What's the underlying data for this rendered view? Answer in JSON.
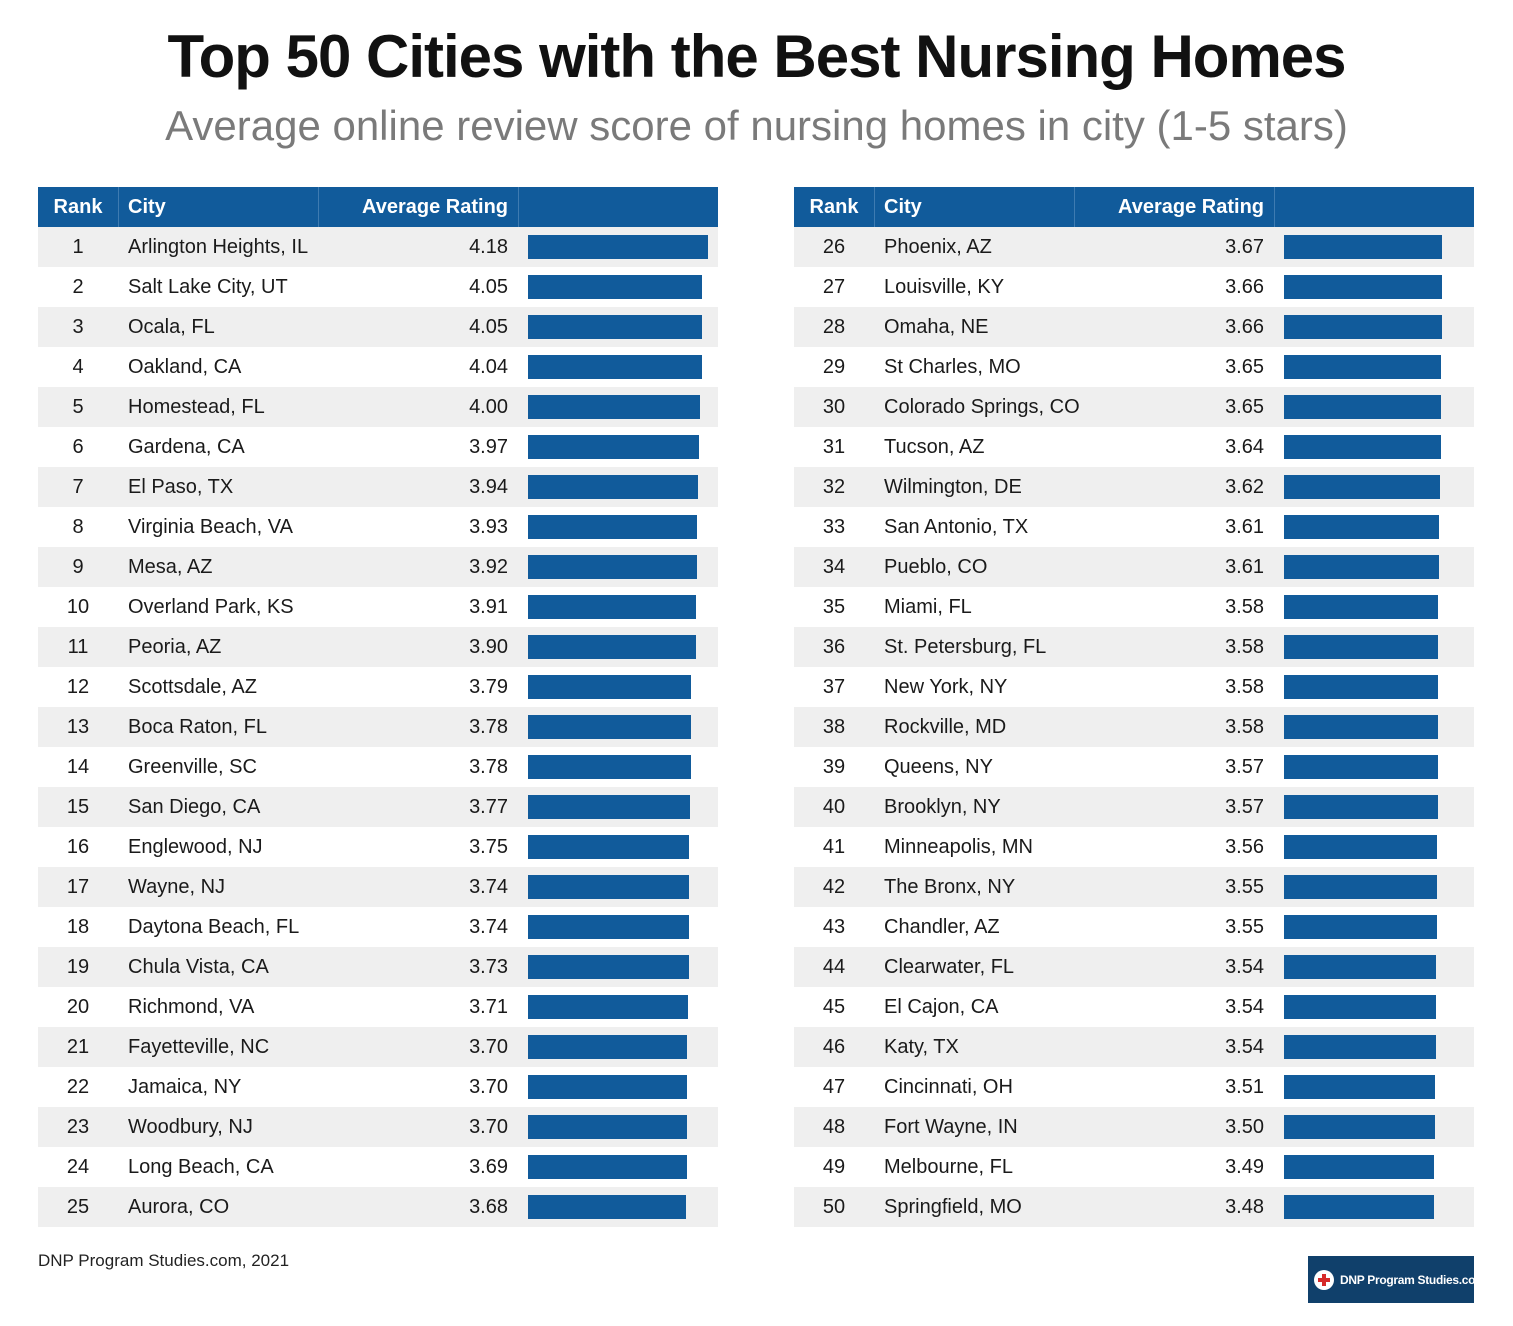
{
  "title": "Top 50 Cities with the Best Nursing Homes",
  "subtitle": "Average online review score of nursing homes in city (1-5 stars)",
  "headers": {
    "rank": "Rank",
    "city": "City",
    "rating": "Average Rating"
  },
  "source": "DNP Program Studies.com, 2021",
  "logo_text": "DNP Program Studies.com",
  "colors": {
    "accent": "#115b9b",
    "row_shade": "#efefef",
    "logo_bg": "#10406b"
  },
  "chart_data": {
    "type": "bar",
    "title": "Top 50 Cities with the Best Nursing Homes",
    "subtitle": "Average online review score of nursing homes in city (1-5 stars)",
    "xlabel": "City",
    "ylabel": "Average Rating",
    "ylim": [
      0,
      4.18
    ],
    "rows": [
      {
        "rank": "1",
        "city": "Arlington Heights, IL",
        "rating": "4.18"
      },
      {
        "rank": "2",
        "city": "Salt Lake City, UT",
        "rating": "4.05"
      },
      {
        "rank": "3",
        "city": "Ocala, FL",
        "rating": "4.05"
      },
      {
        "rank": "4",
        "city": "Oakland, CA",
        "rating": "4.04"
      },
      {
        "rank": "5",
        "city": "Homestead, FL",
        "rating": "4.00"
      },
      {
        "rank": "6",
        "city": "Gardena, CA",
        "rating": "3.97"
      },
      {
        "rank": "7",
        "city": "El Paso, TX",
        "rating": "3.94"
      },
      {
        "rank": "8",
        "city": "Virginia Beach, VA",
        "rating": "3.93"
      },
      {
        "rank": "9",
        "city": "Mesa, AZ",
        "rating": "3.92"
      },
      {
        "rank": "10",
        "city": "Overland Park, KS",
        "rating": "3.91"
      },
      {
        "rank": "11",
        "city": "Peoria, AZ",
        "rating": "3.90"
      },
      {
        "rank": "12",
        "city": "Scottsdale, AZ",
        "rating": "3.79"
      },
      {
        "rank": "13",
        "city": "Boca Raton, FL",
        "rating": "3.78"
      },
      {
        "rank": "14",
        "city": "Greenville, SC",
        "rating": "3.78"
      },
      {
        "rank": "15",
        "city": "San Diego, CA",
        "rating": "3.77"
      },
      {
        "rank": "16",
        "city": "Englewood, NJ",
        "rating": "3.75"
      },
      {
        "rank": "17",
        "city": "Wayne, NJ",
        "rating": "3.74"
      },
      {
        "rank": "18",
        "city": "Daytona Beach, FL",
        "rating": "3.74"
      },
      {
        "rank": "19",
        "city": "Chula Vista, CA",
        "rating": "3.73"
      },
      {
        "rank": "20",
        "city": "Richmond, VA",
        "rating": "3.71"
      },
      {
        "rank": "21",
        "city": "Fayetteville, NC",
        "rating": "3.70"
      },
      {
        "rank": "22",
        "city": "Jamaica, NY",
        "rating": "3.70"
      },
      {
        "rank": "23",
        "city": "Woodbury, NJ",
        "rating": "3.70"
      },
      {
        "rank": "24",
        "city": "Long Beach, CA",
        "rating": "3.69"
      },
      {
        "rank": "25",
        "city": "Aurora, CO",
        "rating": "3.68"
      },
      {
        "rank": "26",
        "city": "Phoenix, AZ",
        "rating": "3.67"
      },
      {
        "rank": "27",
        "city": "Louisville, KY",
        "rating": "3.66"
      },
      {
        "rank": "28",
        "city": "Omaha, NE",
        "rating": "3.66"
      },
      {
        "rank": "29",
        "city": "St Charles, MO",
        "rating": "3.65"
      },
      {
        "rank": "30",
        "city": "Colorado Springs, CO",
        "rating": "3.65"
      },
      {
        "rank": "31",
        "city": "Tucson, AZ",
        "rating": "3.64"
      },
      {
        "rank": "32",
        "city": "Wilmington, DE",
        "rating": "3.62"
      },
      {
        "rank": "33",
        "city": "San Antonio, TX",
        "rating": "3.61"
      },
      {
        "rank": "34",
        "city": "Pueblo, CO",
        "rating": "3.61"
      },
      {
        "rank": "35",
        "city": "Miami, FL",
        "rating": "3.58"
      },
      {
        "rank": "36",
        "city": "St. Petersburg, FL",
        "rating": "3.58"
      },
      {
        "rank": "37",
        "city": "New York, NY",
        "rating": "3.58"
      },
      {
        "rank": "38",
        "city": "Rockville, MD",
        "rating": "3.58"
      },
      {
        "rank": "39",
        "city": "Queens, NY",
        "rating": "3.57"
      },
      {
        "rank": "40",
        "city": "Brooklyn, NY",
        "rating": "3.57"
      },
      {
        "rank": "41",
        "city": "Minneapolis, MN",
        "rating": "3.56"
      },
      {
        "rank": "42",
        "city": "The Bronx, NY",
        "rating": "3.55"
      },
      {
        "rank": "43",
        "city": "Chandler, AZ",
        "rating": "3.55"
      },
      {
        "rank": "44",
        "city": "Clearwater, FL",
        "rating": "3.54"
      },
      {
        "rank": "45",
        "city": "El Cajon, CA",
        "rating": "3.54"
      },
      {
        "rank": "46",
        "city": "Katy, TX",
        "rating": "3.54"
      },
      {
        "rank": "47",
        "city": "Cincinnati, OH",
        "rating": "3.51"
      },
      {
        "rank": "48",
        "city": "Fort Wayne, IN",
        "rating": "3.50"
      },
      {
        "rank": "49",
        "city": "Melbourne, FL",
        "rating": "3.49"
      },
      {
        "rank": "50",
        "city": "Springfield, MO",
        "rating": "3.48"
      }
    ]
  }
}
